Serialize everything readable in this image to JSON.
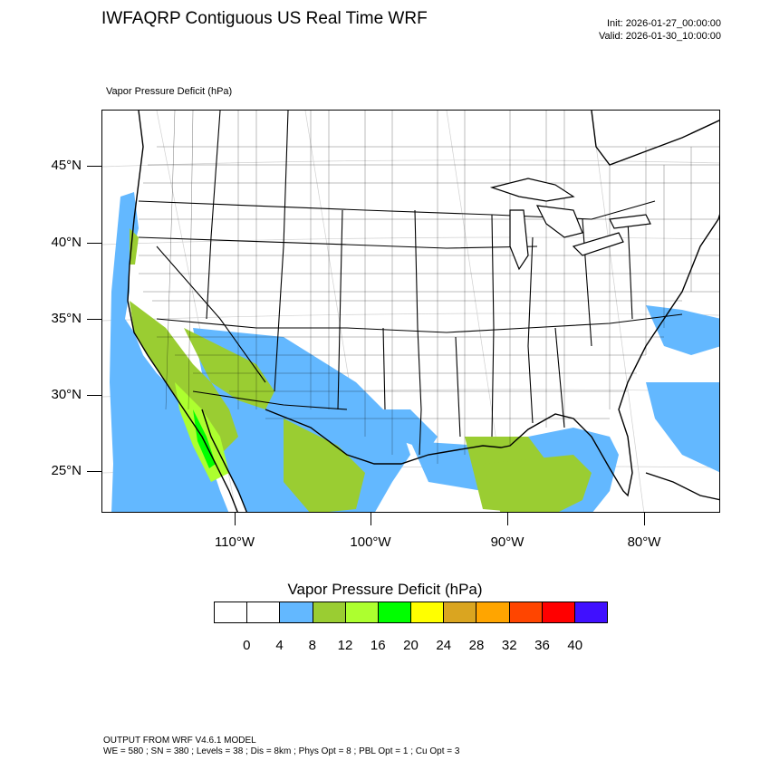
{
  "header": {
    "title": "IWFAQRP Contiguous US Real Time WRF",
    "init": "Init: 2026-01-27_00:00:00",
    "valid": "Valid: 2026-01-30_10:00:00"
  },
  "field_label": "Vapor Pressure Deficit   (hPa)",
  "lat_labels": [
    "45°N",
    "40°N",
    "35°N",
    "30°N",
    "25°N"
  ],
  "lon_labels": [
    "110°W",
    "100°W",
    "90°W",
    "80°W"
  ],
  "colorbar": {
    "title": "Vapor Pressure Deficit  (hPa)",
    "labels": [
      "0",
      "4",
      "8",
      "12",
      "16",
      "20",
      "24",
      "28",
      "32",
      "36",
      "40"
    ],
    "colors": [
      "#ffffff",
      "#ffffff",
      "#63b8ff",
      "#9acd32",
      "#adff2f",
      "#00ff00",
      "#ffff00",
      "#daa520",
      "#ffa500",
      "#ff4500",
      "#ff0000",
      "#4010ff"
    ]
  },
  "footer": {
    "line1": "OUTPUT FROM WRF V4.6.1 MODEL",
    "line2": "WE = 580 ; SN = 380 ; Levels = 38 ; Dis = 8km ; Phys Opt = 8 ; PBL Opt = 1 ; Cu Opt = 3"
  }
}
